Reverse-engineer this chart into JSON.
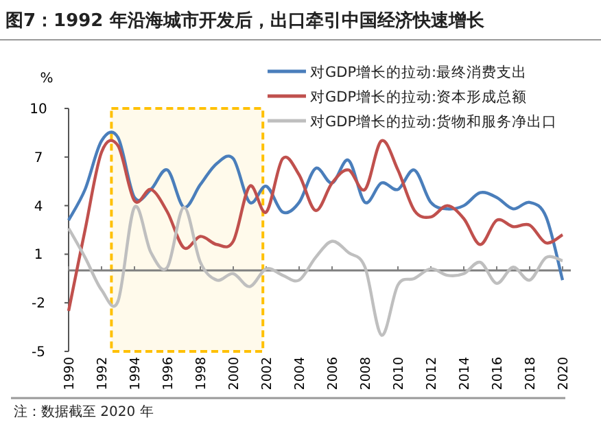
{
  "chart_data": {
    "type": "line",
    "title": "图7：1992 年沿海城市开发后，出口牵引中国经济快速增长",
    "ylabel": "%",
    "x": [
      1990,
      1991,
      1992,
      1993,
      1994,
      1995,
      1996,
      1997,
      1998,
      1999,
      2000,
      2001,
      2002,
      2003,
      2004,
      2005,
      2006,
      2007,
      2008,
      2009,
      2010,
      2011,
      2012,
      2013,
      2014,
      2015,
      2016,
      2017,
      2018,
      2019,
      2020
    ],
    "series": [
      {
        "name": "对GDP增长的拉动:最终消费支出",
        "color": "#4a7ebb",
        "values": [
          3.1,
          5.0,
          8.0,
          8.2,
          4.5,
          5.0,
          6.2,
          3.9,
          5.3,
          6.6,
          6.9,
          4.2,
          5.2,
          3.6,
          4.2,
          6.3,
          5.4,
          6.8,
          4.2,
          5.4,
          5.0,
          6.2,
          4.2,
          3.8,
          4.0,
          4.8,
          4.5,
          3.8,
          4.2,
          3.3,
          -0.6
        ]
      },
      {
        "name": "对GDP增长的拉动:资本形成总额",
        "color": "#c0504d",
        "values": [
          -2.5,
          2.5,
          7.3,
          7.7,
          4.3,
          5.0,
          3.6,
          1.4,
          2.1,
          1.6,
          1.8,
          5.2,
          3.6,
          6.9,
          5.9,
          3.7,
          5.4,
          6.2,
          5.0,
          8.0,
          6.2,
          3.7,
          3.3,
          4.0,
          3.2,
          1.6,
          3.1,
          2.7,
          2.8,
          1.7,
          2.2
        ]
      },
      {
        "name": "对GDP增长的拉动:货物和服务净出口",
        "color": "#bfbfbf",
        "values": [
          2.6,
          0.8,
          -1.2,
          -1.9,
          3.9,
          1.1,
          0.2,
          3.9,
          0.5,
          -0.6,
          -0.2,
          -1.0,
          0.1,
          -0.3,
          -0.6,
          0.8,
          1.8,
          1.1,
          0.2,
          -4.0,
          -0.9,
          -0.5,
          0.1,
          -0.3,
          -0.2,
          0.5,
          -0.8,
          0.2,
          -0.6,
          0.8,
          0.6
        ]
      }
    ],
    "xlim": [
      1990,
      2020
    ],
    "xticks": [
      1990,
      1992,
      1994,
      1996,
      1998,
      2000,
      2002,
      2004,
      2006,
      2008,
      2010,
      2012,
      2014,
      2016,
      2018,
      2020
    ],
    "ylim": [
      -5,
      10
    ],
    "yticks": [
      -5,
      -2,
      1,
      4,
      7,
      10
    ],
    "ref_lines": [
      {
        "axis": "y",
        "value": 0,
        "color": "#7f7f7f"
      }
    ],
    "bands": [
      {
        "axis": "x",
        "from": 1992.6,
        "to": 2001.8,
        "color": "#ffc000"
      }
    ],
    "grid": false,
    "legend": "top right",
    "marker": "none",
    "line_style": "solid",
    "annotations": [
      "注：数据截至 2020 年"
    ]
  }
}
